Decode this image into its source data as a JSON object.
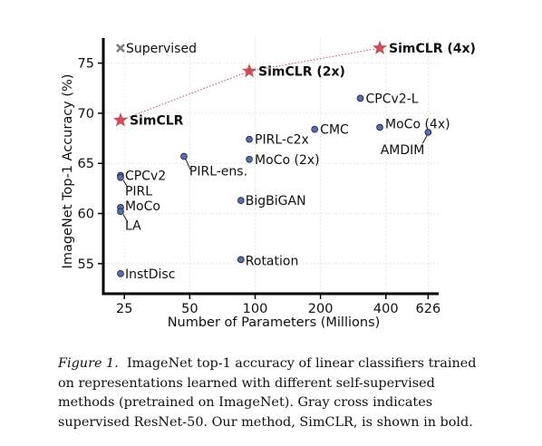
{
  "chart_data": {
    "type": "scatter",
    "xlabel": "Number of Parameters (Millions)",
    "ylabel": "ImageNet Top-1 Accuracy (%)",
    "x_scale": "log",
    "xlim": [
      20,
      700
    ],
    "ylim": [
      52,
      77.5
    ],
    "x_ticks": [
      25,
      50,
      100,
      200,
      400,
      626
    ],
    "x_tick_labels": [
      "25",
      "50",
      "100",
      "200",
      "400",
      "626"
    ],
    "y_ticks": [
      55,
      60,
      65,
      70,
      75
    ],
    "y_tick_labels": [
      "55",
      "60",
      "65",
      "70",
      "75"
    ],
    "grid": true,
    "supervised": {
      "label": "Supervised",
      "x": 24,
      "y": 76.5
    },
    "simclr": [
      {
        "label": "SimCLR",
        "x": 24,
        "y": 69.3
      },
      {
        "label": "SimCLR (2x)",
        "x": 94,
        "y": 74.2
      },
      {
        "label": "SimCLR (4x)",
        "x": 375,
        "y": 76.5
      }
    ],
    "points": [
      {
        "label": "CPCv2",
        "x": 24,
        "y": 63.8
      },
      {
        "label": "PIRL",
        "x": 24,
        "y": 63.6
      },
      {
        "label": "MoCo",
        "x": 24,
        "y": 60.6
      },
      {
        "label": "LA",
        "x": 24,
        "y": 60.2
      },
      {
        "label": "InstDisc",
        "x": 24,
        "y": 54.0
      },
      {
        "label": "PIRL-ens.",
        "x": 47,
        "y": 65.7
      },
      {
        "label": "PIRL-c2x",
        "x": 94,
        "y": 67.4
      },
      {
        "label": "MoCo (2x)",
        "x": 94,
        "y": 65.4
      },
      {
        "label": "BigBiGAN",
        "x": 86,
        "y": 61.3
      },
      {
        "label": "Rotation",
        "x": 86,
        "y": 55.4
      },
      {
        "label": "CMC",
        "x": 188,
        "y": 68.4
      },
      {
        "label": "CPCv2-L",
        "x": 305,
        "y": 71.5
      },
      {
        "label": "MoCo (4x)",
        "x": 375,
        "y": 68.6
      },
      {
        "label": "AMDIM",
        "x": 626,
        "y": 68.1
      }
    ],
    "colors": {
      "point": "#5a6fa8",
      "star": "#c8505a",
      "cross": "#7f7f7f",
      "dotted_line": "#c8505a"
    }
  },
  "caption": {
    "figure_label": "Figure 1.",
    "text": "ImageNet top-1 accuracy of linear classifiers trained on representations learned with different self-supervised methods (pretrained on ImageNet). Gray cross indicates supervised ResNet-50. Our method, SimCLR, is shown in bold."
  }
}
